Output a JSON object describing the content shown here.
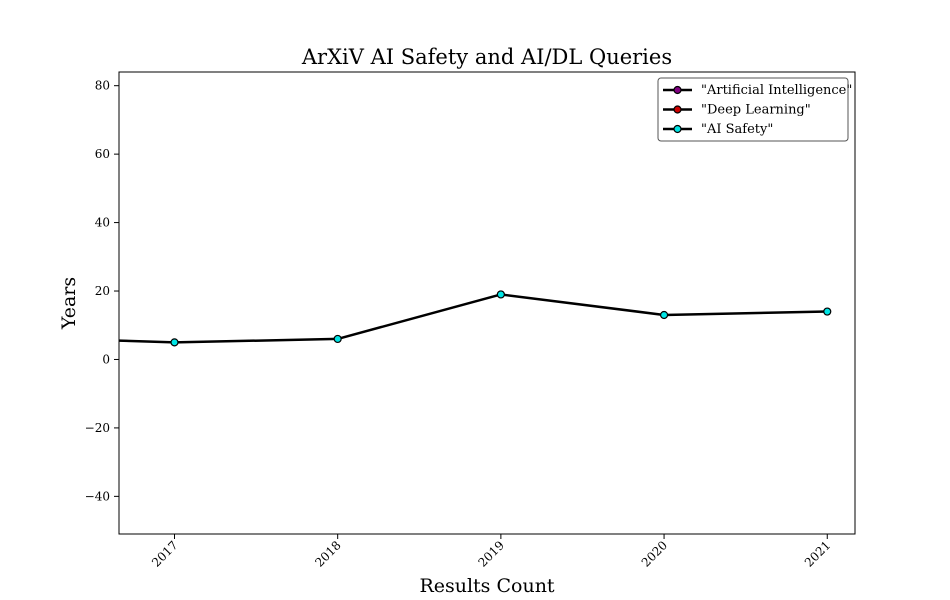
{
  "chart_data": {
    "type": "line",
    "title": "ArXiV AI Safety and AI/DL Queries",
    "xlabel": "Results Count",
    "ylabel": "Years",
    "xlim": [
      2016.66,
      2021.17
    ],
    "ylim": [
      -51,
      84
    ],
    "x_ticks": [
      "2017",
      "2018",
      "2019",
      "2020",
      "2021"
    ],
    "y_ticks": [
      "80",
      "60",
      "40",
      "20",
      "0",
      "−20",
      "−40"
    ],
    "grid": false,
    "legend_position": "top-right",
    "series": [
      {
        "name": "\"Artificial Intelligence\"",
        "marker_color": "#800080",
        "x": [],
        "y": []
      },
      {
        "name": "\"Deep Learning\"",
        "marker_color": "#cc0000",
        "x": [],
        "y": []
      },
      {
        "name": "\"AI Safety\"",
        "marker_color": "#00e5e5",
        "x": [
          2016.66,
          2017,
          2018,
          2019,
          2020,
          2021
        ],
        "y": [
          5.5,
          5,
          6,
          19,
          13,
          14
        ],
        "markers_from_index": 1
      }
    ]
  }
}
